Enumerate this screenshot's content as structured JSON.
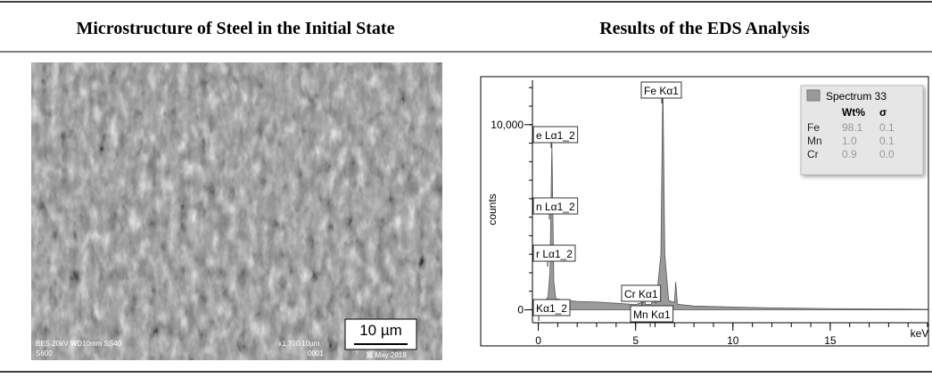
{
  "table": {
    "headers": [
      "Microstructure of Steel in the Initial State",
      "Results of the EDS Analysis"
    ]
  },
  "micrograph": {
    "scale_bar": "10 µm",
    "info_left": "BES  20kV   WD10mm   SS40",
    "info_left2": "S600",
    "info_right": "x1,700   10µm",
    "info_right2": "0001",
    "info_date": "11 May 2018"
  },
  "chart_data": {
    "type": "area",
    "ylabel": "counts",
    "xlabel": "keV",
    "color": "#9a9a9a",
    "x": [
      0.1,
      0.3,
      0.5,
      0.6,
      0.7,
      0.8,
      0.9,
      1.5,
      2,
      3,
      4,
      5,
      5.35,
      5.41,
      5.5,
      5.8,
      5.9,
      6.05,
      6.3,
      6.4,
      6.5,
      6.7,
      7.0,
      7.06,
      7.15,
      8,
      10,
      12,
      15,
      20
    ],
    "values": [
      0,
      400,
      700,
      2000,
      9000,
      1500,
      600,
      500,
      450,
      420,
      350,
      280,
      400,
      1200,
      280,
      300,
      600,
      350,
      3000,
      12300,
      3000,
      500,
      400,
      1500,
      300,
      200,
      150,
      100,
      60,
      30
    ],
    "xlim": [
      -0.3,
      20
    ],
    "ylim": [
      -700,
      12400
    ],
    "xticks": [
      0,
      5,
      10,
      15
    ],
    "yticks": [
      0,
      {
        "value": 10000,
        "label": "10,000"
      }
    ],
    "annotations": [
      "Fe Kα1",
      "e Lα1_2",
      "n Lα1_2",
      "r Lα1_2",
      "Kα1_2",
      "Cr Kα1",
      "Mn Kα1"
    ],
    "legend": {
      "title": "Spectrum 33",
      "columns": [
        "Wt%",
        "σ"
      ],
      "rows": [
        [
          "Fe",
          "98.1",
          "0.1"
        ],
        [
          "Mn",
          "1.0",
          "0.1"
        ],
        [
          "Cr",
          "0.9",
          "0.0"
        ]
      ]
    }
  }
}
